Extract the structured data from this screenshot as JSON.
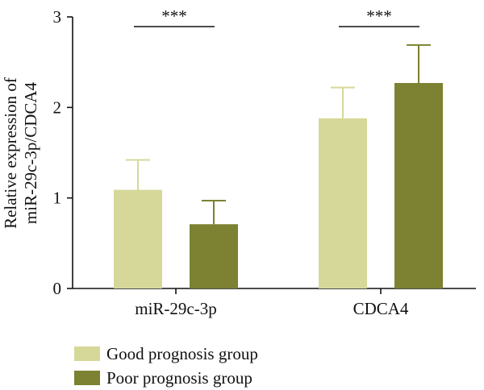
{
  "chart_data": {
    "type": "bar",
    "categories": [
      "miR-29c-3p",
      "CDCA4"
    ],
    "series": [
      {
        "name": "Good prognosis group",
        "color": "#d6d89a",
        "values": [
          1.09,
          1.88
        ],
        "errors": [
          0.33,
          0.34
        ]
      },
      {
        "name": "Poor prognosis group",
        "color": "#7c8231",
        "values": [
          0.71,
          2.27
        ],
        "errors": [
          0.26,
          0.42
        ]
      }
    ],
    "ylabel_line1": "Relative expression of",
    "ylabel_line2": "miR-29c-3p/CDCA4",
    "ylim": [
      0,
      3
    ],
    "yticks": [
      "0",
      "1",
      "2",
      "3"
    ],
    "significance": [
      "***",
      "***"
    ],
    "grid": false,
    "legend_position": "bottom-left"
  }
}
